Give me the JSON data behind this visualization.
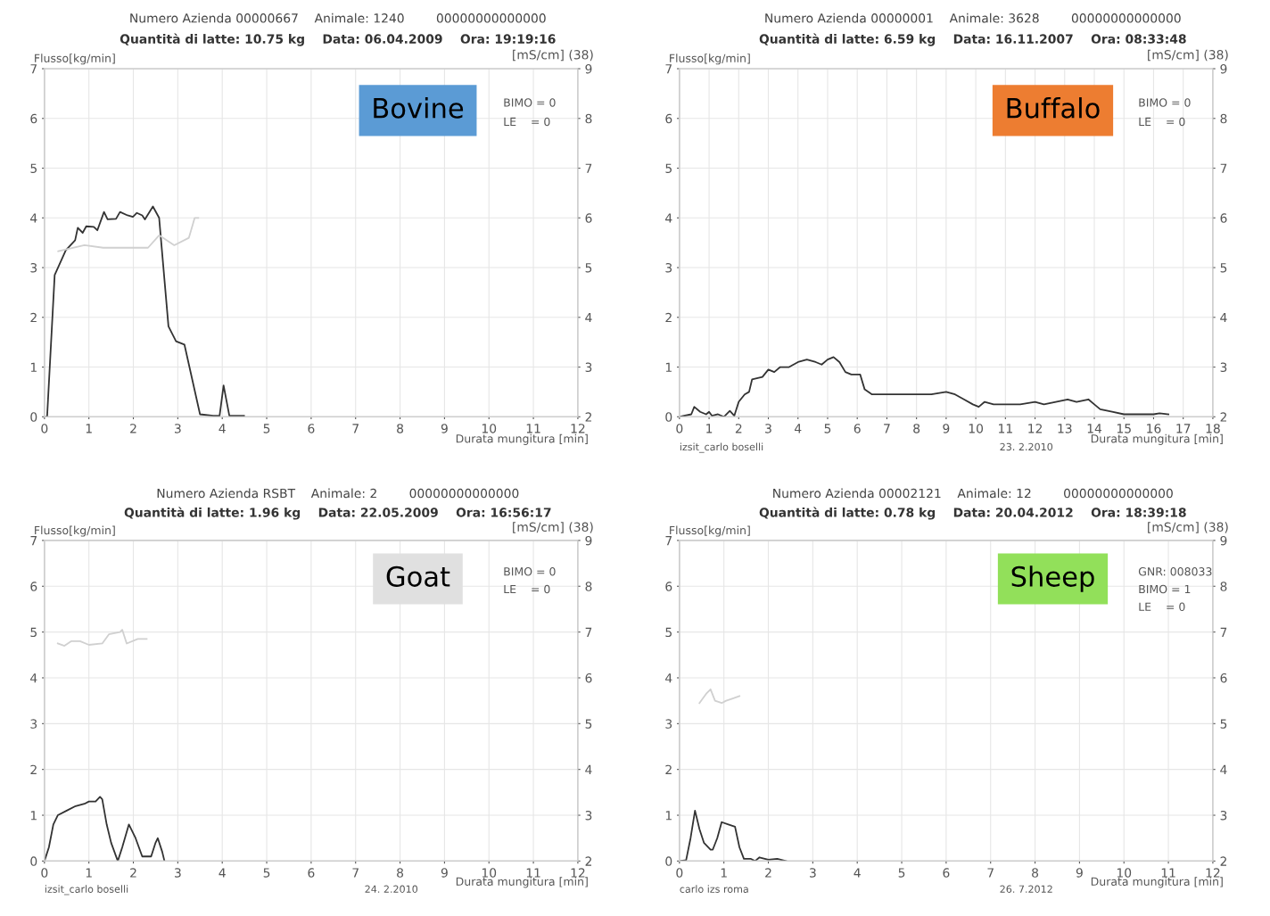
{
  "chart_data": [
    {
      "type": "line",
      "title": "Numero Azienda 00000667    Animale: 1240        00000000000000",
      "subtitle": "Quantità di latte: 10.75 kg    Data: 06.04.2009    Ora: 19:19:16",
      "ylabel": "Flusso[kg/min]",
      "y2label": "[mS/cm] (38)",
      "xlabel": "Durata mungitura [min]",
      "xlim": [
        0,
        12
      ],
      "xticks": [
        0,
        1,
        2,
        3,
        4,
        5,
        6,
        7,
        8,
        9,
        10,
        11,
        12
      ],
      "ylim": [
        0,
        7
      ],
      "yticks": [
        0,
        1,
        2,
        3,
        4,
        5,
        6,
        7
      ],
      "y2lim": [
        2,
        9
      ],
      "y2ticks": [
        2,
        3,
        4,
        5,
        6,
        7,
        8,
        9
      ],
      "grid": true,
      "series": [
        {
          "color": "#333333",
          "x": [
            0,
            0.06,
            0.23,
            0.48,
            0.69,
            0.75,
            0.86,
            0.94,
            1.11,
            1.19,
            1.34,
            1.42,
            1.61,
            1.7,
            1.87,
            1.99,
            2.08,
            2.2,
            2.26,
            2.44,
            2.58,
            2.79,
            2.96,
            3.15,
            3.5,
            3.8,
            3.94,
            4.03,
            4.16,
            4.49
          ],
          "values": [
            0,
            0,
            2.85,
            3.35,
            3.55,
            3.8,
            3.7,
            3.83,
            3.82,
            3.75,
            4.12,
            3.97,
            3.98,
            4.12,
            4.05,
            4.02,
            4.1,
            4.05,
            3.97,
            4.23,
            4.0,
            1.82,
            1.52,
            1.45,
            0.05,
            0.02,
            0.02,
            0.63,
            0.02,
            0.02
          ]
        },
        {
          "color": "#d0d0d0",
          "axis": "y2",
          "x": [
            0.31,
            0.9,
            1.32,
            2.33,
            2.58,
            2.92,
            3.25,
            3.38,
            3.46
          ],
          "values": [
            5.33,
            5.45,
            5.4,
            5.4,
            5.65,
            5.45,
            5.6,
            6.0,
            6.0
          ]
        }
      ],
      "annotations": [
        "Bovine",
        "BIMO = 0",
        "LE    = 0"
      ]
    },
    {
      "type": "line",
      "title": "Numero Azienda 00000001    Animale: 3628        00000000000000",
      "subtitle": "Quantità di latte: 6.59 kg    Data: 16.11.2007    Ora: 08:33:48",
      "ylabel": "Flusso[kg/min]",
      "y2label": "[mS/cm] (38)",
      "xlabel": "Durata mungitura [min]",
      "xlim": [
        0,
        18
      ],
      "xticks": [
        0,
        1,
        2,
        3,
        4,
        5,
        6,
        7,
        8,
        9,
        10,
        11,
        12,
        13,
        14,
        15,
        16,
        17,
        18
      ],
      "ylim": [
        0,
        7
      ],
      "yticks": [
        0,
        1,
        2,
        3,
        4,
        5,
        6,
        7
      ],
      "y2lim": [
        2,
        9
      ],
      "y2ticks": [
        2,
        3,
        4,
        5,
        6,
        7,
        8,
        9
      ],
      "grid": true,
      "series": [
        {
          "color": "#333333",
          "x": [
            0,
            0.4,
            0.5,
            0.7,
            0.9,
            1.0,
            1.1,
            1.3,
            1.5,
            1.7,
            1.85,
            2.0,
            2.2,
            2.35,
            2.45,
            2.8,
            3.0,
            3.2,
            3.4,
            3.7,
            4.0,
            4.3,
            4.6,
            4.8,
            5.0,
            5.2,
            5.4,
            5.6,
            5.8,
            6.1,
            6.25,
            6.5,
            7,
            7.5,
            8,
            8.5,
            9.0,
            9.3,
            9.6,
            9.9,
            10.1,
            10.3,
            10.6,
            11,
            11.5,
            12,
            12.3,
            12.7,
            13.1,
            13.4,
            13.8,
            14.0,
            14.2,
            14.6,
            15,
            15.5,
            16,
            16.2,
            16.5
          ],
          "values": [
            0,
            0.05,
            0.2,
            0.1,
            0.05,
            0.1,
            0.02,
            0.05,
            0.0,
            0.12,
            0.02,
            0.3,
            0.45,
            0.5,
            0.75,
            0.8,
            0.95,
            0.9,
            1.0,
            1.0,
            1.1,
            1.15,
            1.1,
            1.05,
            1.15,
            1.2,
            1.1,
            0.9,
            0.85,
            0.85,
            0.55,
            0.45,
            0.45,
            0.45,
            0.45,
            0.45,
            0.5,
            0.45,
            0.35,
            0.25,
            0.2,
            0.3,
            0.25,
            0.25,
            0.25,
            0.3,
            0.25,
            0.3,
            0.35,
            0.3,
            0.35,
            0.25,
            0.15,
            0.1,
            0.05,
            0.05,
            0.05,
            0.07,
            0.05
          ]
        }
      ],
      "annotations": [
        "Buffalo",
        "BIMO = 0",
        "LE    = 0",
        "izsit_carlo boselli",
        "23. 2.2010"
      ]
    },
    {
      "type": "line",
      "title": "Numero Azienda RSBT    Animale: 2        00000000000000",
      "subtitle": "Quantità di latte: 1.96 kg    Data: 22.05.2009    Ora: 16:56:17",
      "ylabel": "Flusso[kg/min]",
      "y2label": "[mS/cm] (38)",
      "xlabel": "Durata mungitura [min]",
      "xlim": [
        0,
        12
      ],
      "xticks": [
        0,
        1,
        2,
        3,
        4,
        5,
        6,
        7,
        8,
        9,
        10,
        11,
        12
      ],
      "ylim": [
        0,
        7
      ],
      "yticks": [
        0,
        1,
        2,
        3,
        4,
        5,
        6,
        7
      ],
      "y2lim": [
        2,
        9
      ],
      "y2ticks": [
        2,
        3,
        4,
        5,
        6,
        7,
        8,
        9
      ],
      "grid": true,
      "series": [
        {
          "color": "#333333",
          "x": [
            0,
            0.1,
            0.2,
            0.3,
            0.5,
            0.7,
            0.9,
            1.0,
            1.15,
            1.25,
            1.3,
            1.4,
            1.5,
            1.65,
            1.75,
            1.9,
            2.05,
            2.2,
            2.4,
            2.5,
            2.55,
            2.65,
            2.7
          ],
          "values": [
            0,
            0.3,
            0.8,
            1.0,
            1.1,
            1.2,
            1.25,
            1.3,
            1.3,
            1.4,
            1.35,
            0.8,
            0.4,
            0.0,
            0.3,
            0.8,
            0.5,
            0.1,
            0.1,
            0.4,
            0.5,
            0.2,
            0.0
          ]
        },
        {
          "color": "#d0d0d0",
          "axis": "y2",
          "x": [
            0.3,
            0.45,
            0.6,
            0.8,
            1.0,
            1.3,
            1.45,
            1.7,
            1.75,
            1.85,
            2.1,
            2.3
          ],
          "values": [
            6.75,
            6.7,
            6.8,
            6.8,
            6.72,
            6.75,
            6.95,
            7.0,
            7.05,
            6.75,
            6.85,
            6.85
          ]
        }
      ],
      "annotations": [
        "Goat",
        "BIMO = 0",
        "LE    = 0",
        "izsit_carlo boselli",
        "24. 2.2010"
      ]
    },
    {
      "type": "line",
      "title": "Numero Azienda 00002121    Animale: 12        00000000000000",
      "subtitle": "Quantità di latte: 0.78 kg    Data: 20.04.2012    Ora: 18:39:18",
      "ylabel": "Flusso[kg/min]",
      "y2label": "[mS/cm] (38)",
      "xlabel": "Durata mungitura [min]",
      "xlim": [
        0,
        12
      ],
      "xticks": [
        0,
        1,
        2,
        3,
        4,
        5,
        6,
        7,
        8,
        9,
        10,
        11,
        12
      ],
      "ylim": [
        0,
        7
      ],
      "yticks": [
        0,
        1,
        2,
        3,
        4,
        5,
        6,
        7
      ],
      "y2lim": [
        2,
        9
      ],
      "y2ticks": [
        2,
        3,
        4,
        5,
        6,
        7,
        8,
        9
      ],
      "grid": true,
      "series": [
        {
          "color": "#333333",
          "x": [
            0,
            0.15,
            0.25,
            0.35,
            0.45,
            0.55,
            0.7,
            0.75,
            0.85,
            0.95,
            1.1,
            1.25,
            1.35,
            1.45,
            1.6,
            1.7,
            1.8,
            2.0,
            2.2,
            2.4
          ],
          "values": [
            0,
            0.02,
            0.5,
            1.1,
            0.7,
            0.4,
            0.25,
            0.25,
            0.5,
            0.85,
            0.8,
            0.75,
            0.3,
            0.05,
            0.05,
            0.0,
            0.08,
            0.03,
            0.05,
            0.0
          ]
        },
        {
          "color": "#d0d0d0",
          "axis": "y2",
          "x": [
            0.45,
            0.6,
            0.7,
            0.8,
            0.95,
            1.05,
            1.2,
            1.35
          ],
          "values": [
            5.45,
            5.65,
            5.75,
            5.5,
            5.45,
            5.5,
            5.55,
            5.6
          ]
        }
      ],
      "annotations": [
        "Sheep",
        "GNR: 008033",
        "BIMO = 1",
        "LE    = 0",
        "carlo izs roma",
        "26. 7.2012"
      ]
    }
  ]
}
